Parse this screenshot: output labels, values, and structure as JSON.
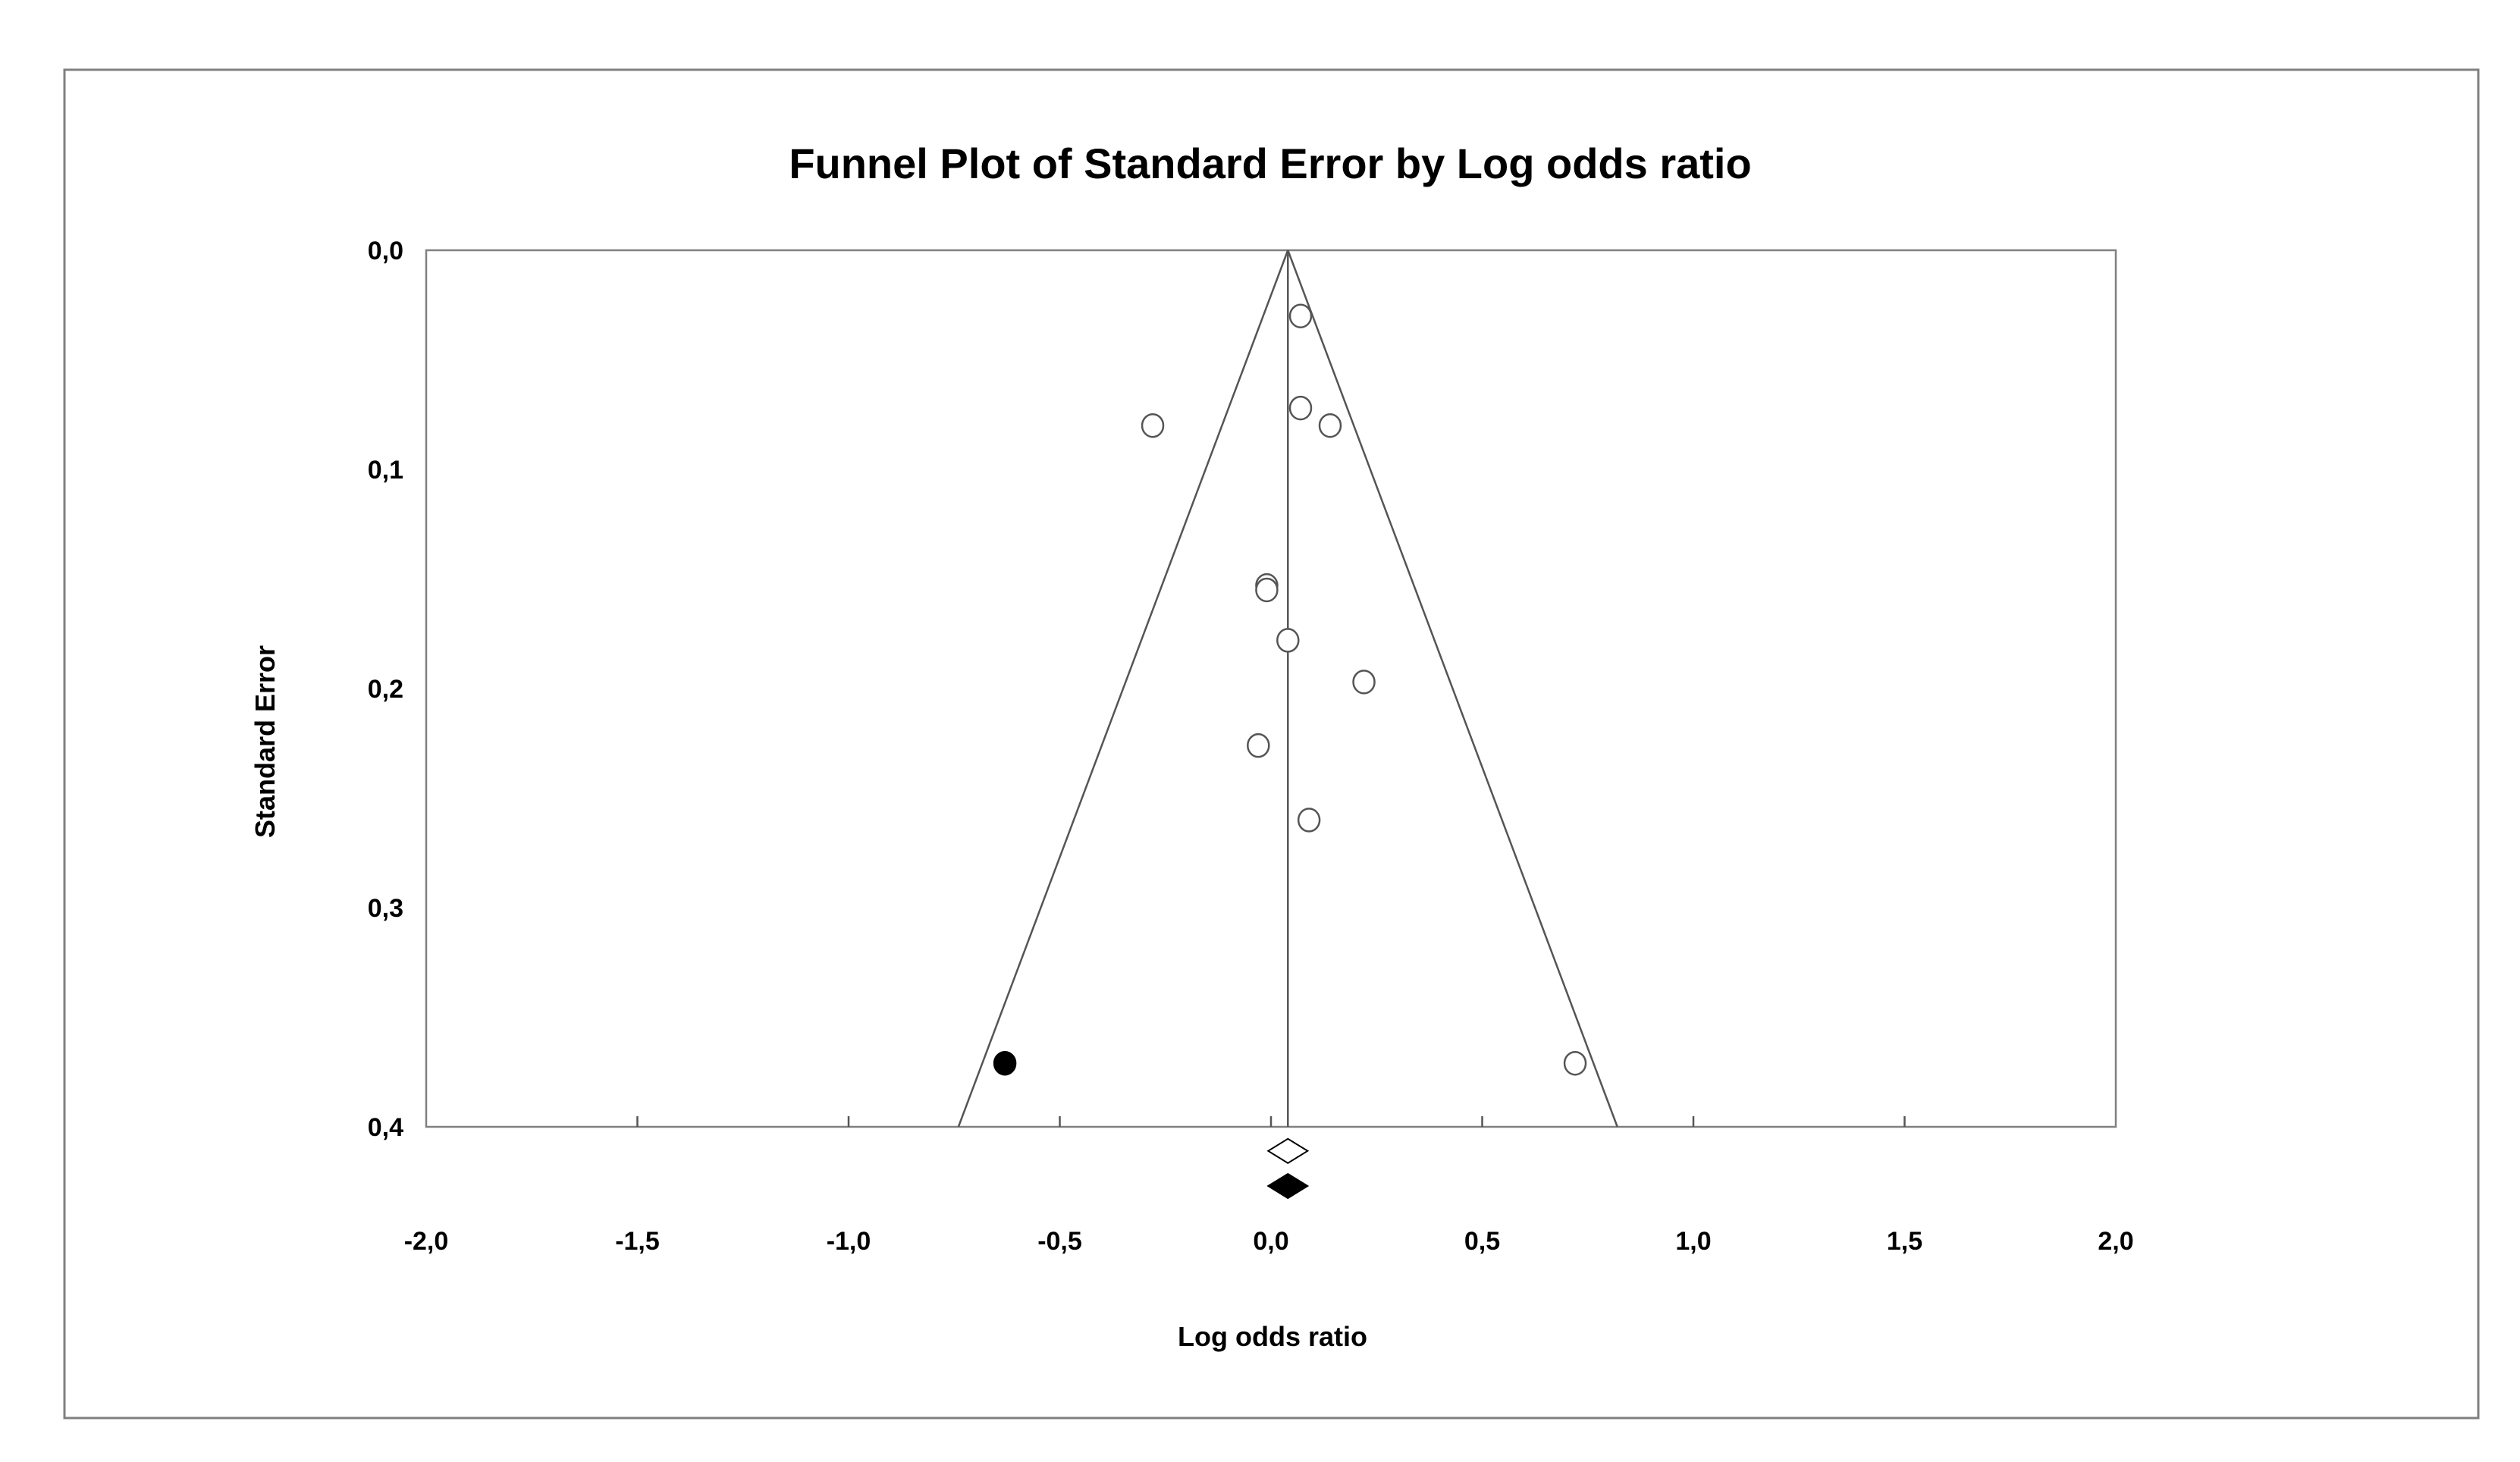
{
  "chart_data": {
    "type": "scatter",
    "title": "Funnel Plot of Standard Error by Log odds ratio",
    "xlabel": "Log odds ratio",
    "ylabel": "Standard Error",
    "xlim": [
      -2.0,
      2.0
    ],
    "ylim": [
      0.0,
      0.4
    ],
    "y_inverted": true,
    "x_ticks": [
      "-2,0",
      "-1,5",
      "-1,0",
      "-0,5",
      "0,0",
      "0,5",
      "1,0",
      "1,5",
      "2,0"
    ],
    "x_tick_values": [
      -2.0,
      -1.5,
      -1.0,
      -0.5,
      0.0,
      0.5,
      1.0,
      1.5,
      2.0
    ],
    "y_ticks": [
      "0,0",
      "0,1",
      "0,2",
      "0,3",
      "0,4"
    ],
    "y_tick_values": [
      0.0,
      0.1,
      0.2,
      0.3,
      0.4
    ],
    "pooled_estimate": 0.04,
    "funnel_se_max": 0.4,
    "funnel_x_at_max_se": [
      -0.74,
      0.82
    ],
    "observed_studies": [
      {
        "x": 0.07,
        "y": 0.03
      },
      {
        "x": 0.07,
        "y": 0.072
      },
      {
        "x": 0.14,
        "y": 0.08
      },
      {
        "x": -0.28,
        "y": 0.08
      },
      {
        "x": -0.01,
        "y": 0.153
      },
      {
        "x": -0.01,
        "y": 0.155
      },
      {
        "x": 0.04,
        "y": 0.178
      },
      {
        "x": 0.22,
        "y": 0.197
      },
      {
        "x": -0.03,
        "y": 0.226
      },
      {
        "x": 0.09,
        "y": 0.26
      },
      {
        "x": 0.72,
        "y": 0.371
      }
    ],
    "imputed_studies": [
      {
        "x": -0.63,
        "y": 0.371
      }
    ],
    "observed_combined": {
      "x": 0.04,
      "y": 0.411
    },
    "adjusted_combined": {
      "x": 0.04,
      "y": 0.427
    },
    "colors": {
      "observed": "#ffffff",
      "imputed": "#000000",
      "line": "#555555"
    }
  }
}
